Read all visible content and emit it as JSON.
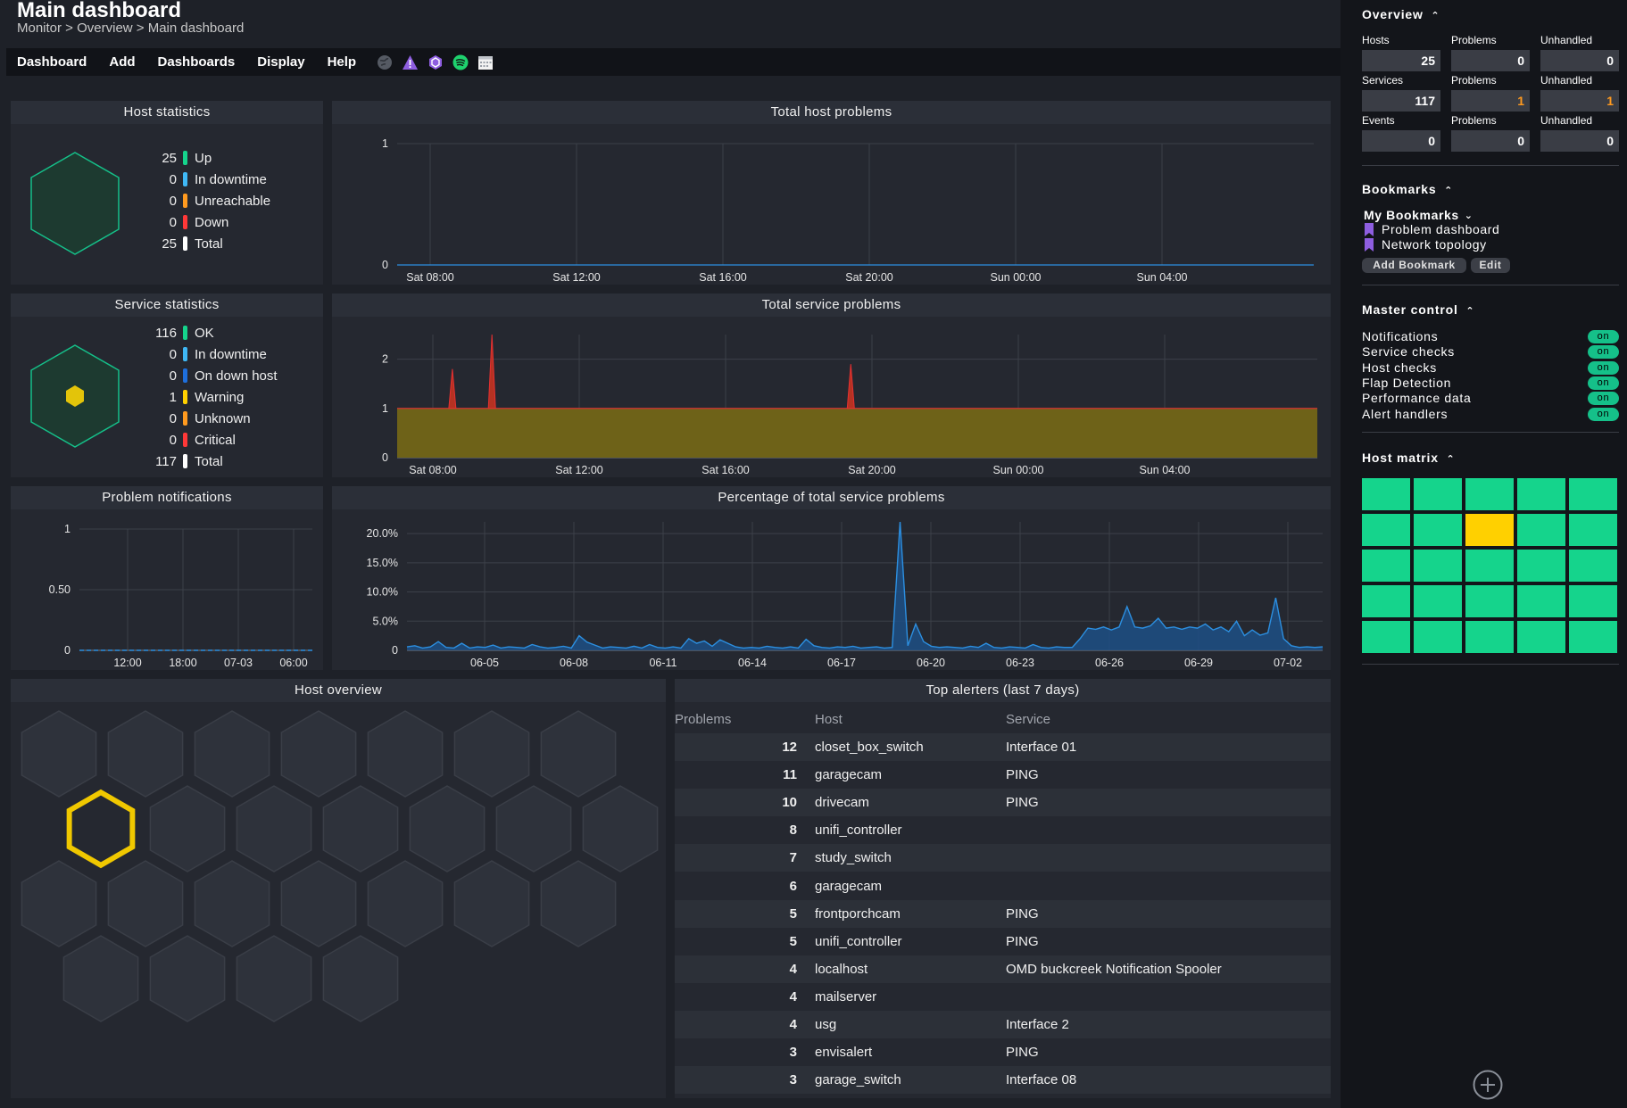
{
  "header": {
    "title": "Main dashboard",
    "breadcrumb": "Monitor > Overview > Main dashboard"
  },
  "menu": {
    "items": [
      "Dashboard",
      "Add",
      "Dashboards",
      "Display",
      "Help"
    ],
    "icons": [
      "globe-icon",
      "warning-icon",
      "hexagon-icon",
      "spotify-icon",
      "calendar-icon"
    ]
  },
  "host_stats": {
    "title": "Host statistics",
    "rows": [
      {
        "count": "25",
        "label": "Up",
        "color": "#15d48c"
      },
      {
        "count": "0",
        "label": "In downtime",
        "color": "#3fb8f5"
      },
      {
        "count": "0",
        "label": "Unreachable",
        "color": "#ff9a1f"
      },
      {
        "count": "0",
        "label": "Down",
        "color": "#ff3838"
      },
      {
        "count": "25",
        "label": "Total",
        "color": "#ffffff"
      }
    ]
  },
  "service_stats": {
    "title": "Service statistics",
    "rows": [
      {
        "count": "116",
        "label": "OK",
        "color": "#15d48c"
      },
      {
        "count": "0",
        "label": "In downtime",
        "color": "#3fb8f5"
      },
      {
        "count": "0",
        "label": "On down host",
        "color": "#1e6fdc"
      },
      {
        "count": "1",
        "label": "Warning",
        "color": "#ffd000"
      },
      {
        "count": "0",
        "label": "Unknown",
        "color": "#ff9a1f"
      },
      {
        "count": "0",
        "label": "Critical",
        "color": "#ff3838"
      },
      {
        "count": "117",
        "label": "Total",
        "color": "#ffffff"
      }
    ]
  },
  "host_overview": {
    "title": "Host overview"
  },
  "top_alerters": {
    "title": "Top alerters (last 7 days)",
    "columns": [
      "Problems",
      "Host",
      "Service"
    ],
    "rows": [
      {
        "problems": "12",
        "host": "closet_box_switch",
        "service": "Interface 01"
      },
      {
        "problems": "11",
        "host": "garagecam",
        "service": "PING"
      },
      {
        "problems": "10",
        "host": "drivecam",
        "service": "PING"
      },
      {
        "problems": "8",
        "host": "unifi_controller",
        "service": ""
      },
      {
        "problems": "7",
        "host": "study_switch",
        "service": ""
      },
      {
        "problems": "6",
        "host": "garagecam",
        "service": ""
      },
      {
        "problems": "5",
        "host": "frontporchcam",
        "service": "PING"
      },
      {
        "problems": "5",
        "host": "unifi_controller",
        "service": "PING"
      },
      {
        "problems": "4",
        "host": "localhost",
        "service": "OMD buckcreek Notification Spooler"
      },
      {
        "problems": "4",
        "host": "mailserver",
        "service": ""
      },
      {
        "problems": "4",
        "host": "usg",
        "service": "Interface 2"
      },
      {
        "problems": "3",
        "host": "envisalert",
        "service": "PING"
      },
      {
        "problems": "3",
        "host": "garage_switch",
        "service": "Interface 08"
      }
    ]
  },
  "chart_data": [
    {
      "type": "line",
      "title": "Total host problems",
      "x_ticks": [
        "Sat 08:00",
        "Sat 12:00",
        "Sat 16:00",
        "Sat 20:00",
        "Sun 00:00",
        "Sun 04:00"
      ],
      "y_ticks": [
        "0",
        "1"
      ],
      "ylim": [
        0,
        1
      ],
      "series": [
        {
          "values": [
            0,
            0,
            0,
            0,
            0,
            0,
            0
          ]
        }
      ],
      "grid": true
    },
    {
      "type": "area",
      "title": "Total service problems",
      "x_ticks": [
        "Sat 08:00",
        "Sat 12:00",
        "Sat 16:00",
        "Sat 20:00",
        "Sun 00:00",
        "Sun 04:00"
      ],
      "y_ticks": [
        "0",
        "1",
        "2"
      ],
      "ylim": [
        0,
        2.5
      ],
      "baseline": 1,
      "spikes": [
        {
          "at": 0.06,
          "value": 1.8
        },
        {
          "at": 0.103,
          "value": 2.5
        },
        {
          "at": 0.493,
          "value": 1.9
        }
      ],
      "colors": {
        "warning": "#6e6218",
        "critical": "#e53030"
      },
      "grid": true
    },
    {
      "type": "line",
      "title": "Problem notifications",
      "x_ticks": [
        "12:00",
        "18:00",
        "07-03",
        "06:00"
      ],
      "y_ticks": [
        "0",
        "0.50",
        "1"
      ],
      "ylim": [
        0,
        1
      ],
      "series": [
        {
          "values": [
            0,
            0,
            0,
            0,
            0,
            0
          ]
        }
      ],
      "grid": true
    },
    {
      "type": "area",
      "title": "Percentage of total service problems",
      "x_ticks": [
        "06-05",
        "06-08",
        "06-11",
        "06-14",
        "06-17",
        "06-20",
        "06-23",
        "06-26",
        "06-29",
        "07-02"
      ],
      "y_ticks": [
        "0",
        "5.0%",
        "10.0%",
        "15.0%",
        "20.0%"
      ],
      "ylim": [
        0,
        22
      ],
      "series": [
        {
          "values": [
            0.6,
            0.8,
            0.4,
            0.6,
            1.5,
            0.5,
            0.4,
            1.2,
            0.4,
            0.6,
            0.5,
            0.9,
            0.4,
            0.6,
            0.5,
            0.4,
            1.0,
            0.6,
            0.4,
            0.5,
            0.7,
            0.4,
            2.5,
            1.4,
            0.9,
            0.4,
            0.6,
            0.5,
            0.4,
            0.7,
            0.4,
            1.0,
            0.5,
            0.4,
            0.6,
            0.4,
            2.0,
            1.2,
            1.6,
            0.7,
            1.8,
            1.2,
            0.6,
            0.4,
            0.5,
            0.4,
            0.7,
            0.5,
            0.4,
            0.6,
            0.4,
            1.9,
            0.8,
            0.5,
            0.4,
            0.6,
            0.5,
            0.7,
            0.4,
            0.5,
            0.6,
            0.4,
            0.5,
            22.0,
            0.8,
            4.5,
            1.5,
            0.7,
            0.5,
            0.6,
            0.5,
            0.4,
            0.7,
            0.5,
            1.2,
            0.5,
            0.4,
            0.6,
            0.5,
            0.4,
            1.0,
            0.5,
            0.4,
            0.6,
            0.5,
            0.5,
            2.0,
            3.8,
            3.6,
            4.0,
            3.5,
            4.0,
            7.5,
            4.0,
            3.8,
            4.2,
            5.5,
            3.8,
            4.0,
            3.6,
            4.0,
            3.8,
            4.5,
            3.5,
            4.0,
            3.2,
            5.0,
            2.5,
            3.5,
            2.6,
            3.0,
            9.0,
            2.0,
            0.8,
            0.5,
            0.6,
            0.5,
            0.6
          ]
        }
      ],
      "color": "#2c8fe0",
      "grid": true
    }
  ],
  "sidebar": {
    "overview": {
      "title": "Overview",
      "rows": [
        {
          "label": "Hosts",
          "value": "25",
          "p_label": "Problems",
          "p_value": "0",
          "u_label": "Unhandled",
          "u_value": "0"
        },
        {
          "label": "Services",
          "value": "117",
          "p_label": "Problems",
          "p_value": "1",
          "u_label": "Unhandled",
          "u_value": "1"
        },
        {
          "label": "Events",
          "value": "0",
          "p_label": "Problems",
          "p_value": "0",
          "u_label": "Unhandled",
          "u_value": "0"
        }
      ],
      "warn_color": "#ff9a1f"
    },
    "bookmarks": {
      "title": "Bookmarks",
      "group": "My Bookmarks",
      "items": [
        "Problem dashboard",
        "Network topology"
      ],
      "add_label": "Add Bookmark",
      "edit_label": "Edit"
    },
    "master_control": {
      "title": "Master control",
      "items": [
        {
          "label": "Notifications",
          "state": "on"
        },
        {
          "label": "Service checks",
          "state": "on"
        },
        {
          "label": "Host checks",
          "state": "on"
        },
        {
          "label": "Flap Detection",
          "state": "on"
        },
        {
          "label": "Performance data",
          "state": "on"
        },
        {
          "label": "Alert handlers",
          "state": "on"
        }
      ]
    },
    "host_matrix": {
      "title": "Host matrix",
      "cells": [
        "ok",
        "ok",
        "ok",
        "ok",
        "ok",
        "ok",
        "ok",
        "warn",
        "ok",
        "ok",
        "ok",
        "ok",
        "ok",
        "ok",
        "ok",
        "ok",
        "ok",
        "ok",
        "ok",
        "ok",
        "ok",
        "ok",
        "ok",
        "ok",
        "ok"
      ]
    },
    "add_icon": "plus-circle-icon"
  }
}
